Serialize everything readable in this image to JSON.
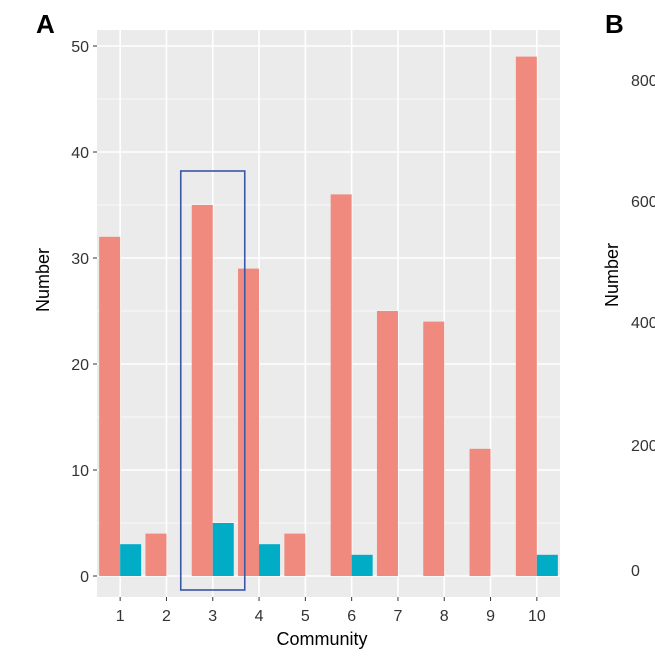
{
  "panels": {
    "a_letter": "A",
    "b_letter": "B"
  },
  "chart_data": [
    {
      "type": "bar",
      "panel": "A",
      "categories": [
        "1",
        "2",
        "3",
        "4",
        "5",
        "6",
        "7",
        "8",
        "9",
        "10"
      ],
      "series": [
        {
          "color": "#F08A7E",
          "values": [
            32,
            4,
            35,
            29,
            4,
            36,
            25,
            24,
            12,
            49
          ]
        },
        {
          "color": "#00ACC6",
          "values": [
            3,
            0,
            5,
            3,
            0,
            2,
            0,
            0,
            0,
            2
          ]
        }
      ],
      "xlabel": "Community",
      "ylabel": "Number",
      "ylim": [
        0,
        51
      ],
      "yticks": [
        0,
        10,
        20,
        30,
        40,
        50
      ],
      "grid": true,
      "highlight_category": "3",
      "highlight_color": "#3A56A6",
      "panel_bg": "#EBEBEB",
      "grid_color": "#FFFFFF"
    },
    {
      "type": "bar",
      "panel": "B",
      "ylabel": "Number",
      "yticks_visible": [
        "800",
        "600",
        "400",
        "200",
        "0"
      ]
    }
  ]
}
